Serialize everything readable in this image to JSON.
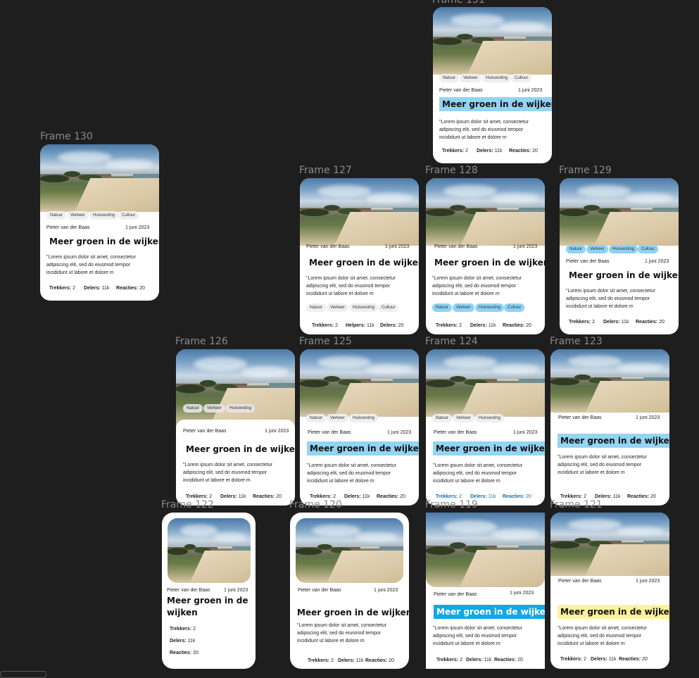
{
  "frames": {
    "f131": "Frame 131",
    "f130": "Frame 130",
    "f127": "Frame 127",
    "f128": "Frame 128",
    "f129": "Frame 129",
    "f126": "Frame 126",
    "f125": "Frame 125",
    "f124": "Frame 124",
    "f123": "Frame 123",
    "f122": "Frame 122",
    "f120": "Frame 120",
    "f119": "Frame 119",
    "f121": "Frame 121"
  },
  "card": {
    "author": "Pieter van der Baas",
    "date": "1 juni 2023",
    "title": "Meer groen in de wijken",
    "body": "\"Lorem ipsum dolor sit amet, consectetur adipiscing elit, sed do eiusmod tempor incididunt ut labore et dolore m",
    "tags": [
      "Natuur",
      "Verkeer",
      "Huisvesting",
      "Cultuur"
    ],
    "stats": {
      "trekkers_label": "Trekkers:",
      "trekkers_value": "2",
      "delers_label": "Delers:",
      "delers_value": "11k",
      "helpers_label": "Helpers:",
      "helpers_value": "11k",
      "reacties_label": "Reacties:",
      "reacties_value": "20"
    }
  },
  "colors": {
    "canvas": "#1e1e1e",
    "highlight_light_blue": "#93d4f2",
    "highlight_blue": "#12a8e6",
    "highlight_yellow": "#fbf39a",
    "tag_blue": "#8fd3f4"
  }
}
